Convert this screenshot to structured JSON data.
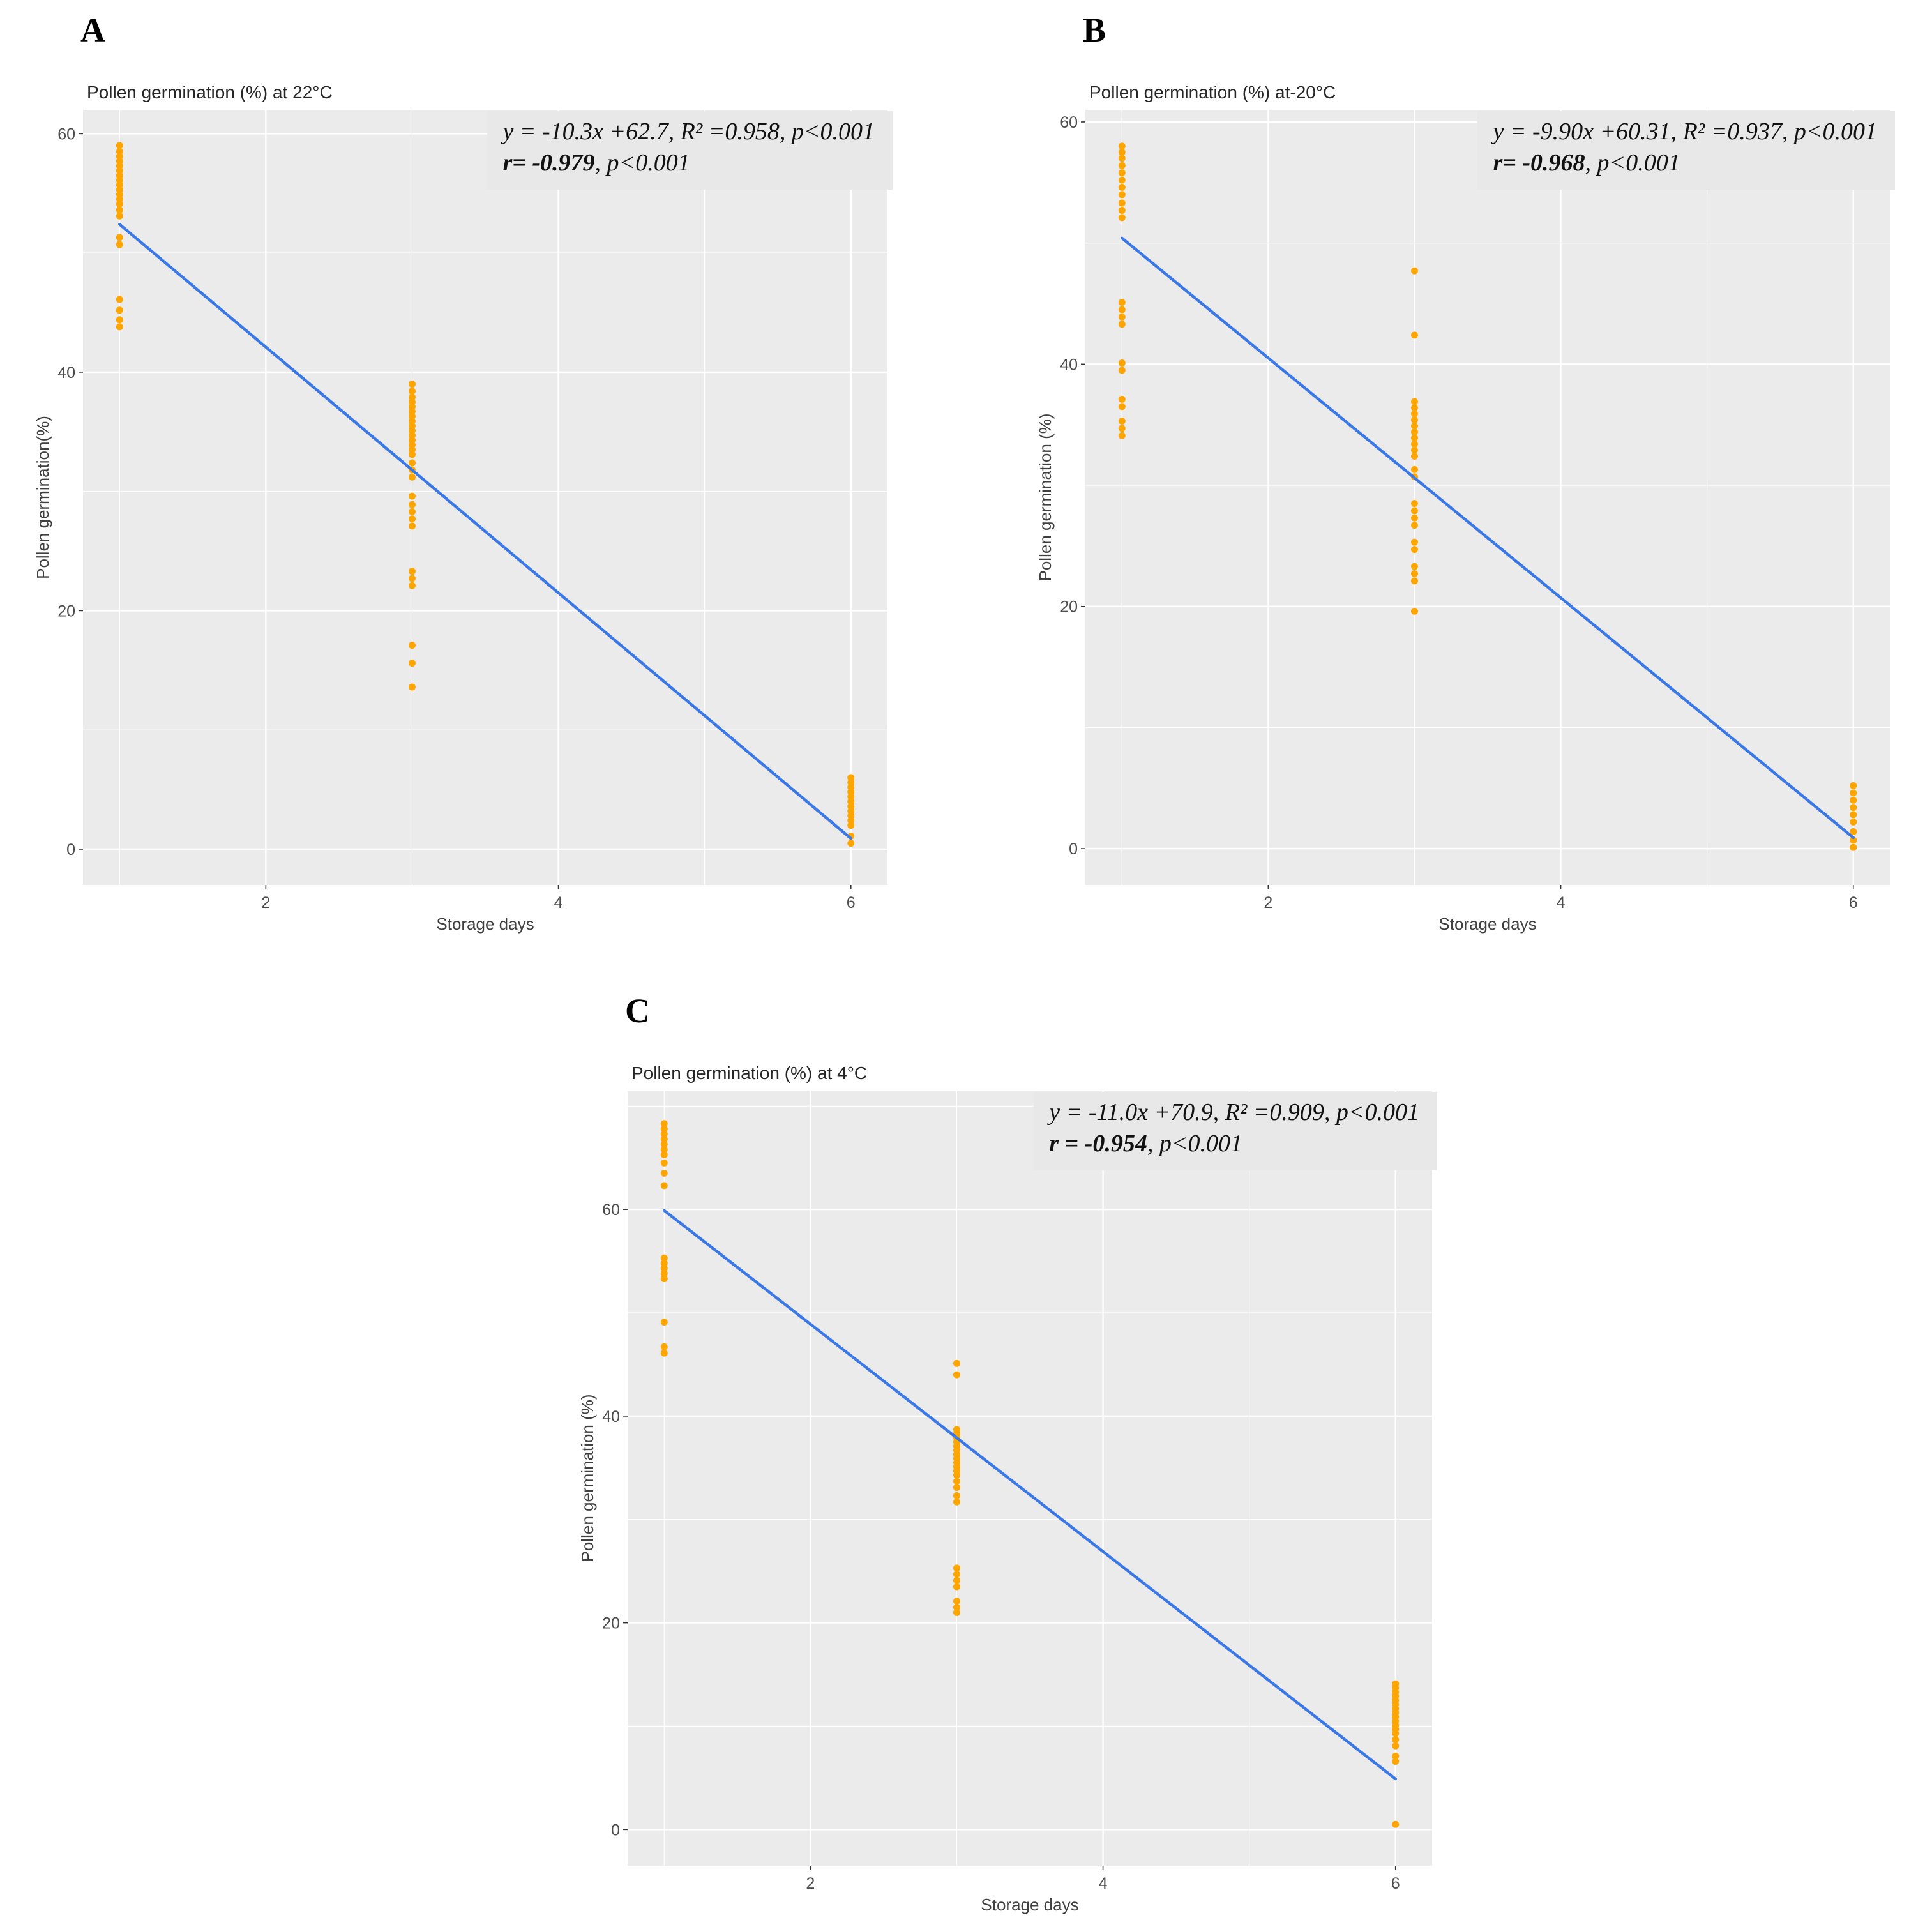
{
  "colors": {
    "point": "#FFA500",
    "line": "#3B78E7",
    "panel_bg": "#EBEBEB",
    "grid": "#FFFFFF",
    "annotation_bg": "#E8E8E8",
    "tick_text": "#4D4D4D",
    "axis_text": "#404040",
    "title_text": "#262626"
  },
  "chart_data": [
    {
      "panel_label": "A",
      "type": "scatter",
      "title": "Pollen germination (%) at 22°C",
      "xlabel": "Storage days",
      "ylabel": "Pollen germination(%)",
      "xlim": [
        0.75,
        6.25
      ],
      "ylim": [
        -3,
        62
      ],
      "xticks": [
        2,
        4,
        6
      ],
      "yticks": [
        0,
        20,
        40,
        60
      ],
      "xminor": [
        1,
        3,
        5
      ],
      "yminor": [
        10,
        30,
        50
      ],
      "grid": true,
      "legend": "none",
      "annotation": {
        "line1": "y = -10.3x +62.7,  R² =0.958, p<0.001",
        "line2_bold": "r= -0.979",
        "line2_rest": ", p<0.001"
      },
      "regression": {
        "slope": -10.3,
        "intercept": 62.7,
        "x_start": 1,
        "x_end": 6
      },
      "series": [
        {
          "name": "observations",
          "groups": [
            {
              "x": 1,
              "y": [
                59,
                58.5,
                58.1,
                57.7,
                57.3,
                56.9,
                56.5,
                56.1,
                55.7,
                55.3,
                54.9,
                54.5,
                54.1,
                53.6,
                53.1,
                51.3,
                50.7,
                46.1,
                45.2,
                44.4,
                43.8
              ]
            },
            {
              "x": 3,
              "y": [
                39,
                38.4,
                37.9,
                37.5,
                37.1,
                36.7,
                36.3,
                35.9,
                35.5,
                35.1,
                34.7,
                34.3,
                33.9,
                33.5,
                33.1,
                32.4,
                31.8,
                31.2,
                29.6,
                28.9,
                28.3,
                27.7,
                27.1,
                23.3,
                22.7,
                22.1,
                17.1,
                15.6,
                13.6
              ]
            },
            {
              "x": 6,
              "y": [
                6,
                5.6,
                5.2,
                4.8,
                4.4,
                4.0,
                3.6,
                3.2,
                2.8,
                2.4,
                2.0,
                1.1,
                0.5
              ]
            }
          ]
        }
      ]
    },
    {
      "panel_label": "B",
      "type": "scatter",
      "title": "Pollen germination (%) at-20°C",
      "xlabel": "Storage days",
      "ylabel": "Pollen germination (%)",
      "xlim": [
        0.75,
        6.25
      ],
      "ylim": [
        -3,
        61
      ],
      "xticks": [
        2,
        4,
        6
      ],
      "yticks": [
        0,
        20,
        40,
        60
      ],
      "xminor": [
        1,
        3,
        5
      ],
      "yminor": [
        10,
        30,
        50
      ],
      "grid": true,
      "legend": "none",
      "annotation": {
        "line1": "y = -9.90x +60.31,  R² =0.937, p<0.001",
        "line2_bold": "r= -0.968",
        "line2_rest": ", p<0.001"
      },
      "regression": {
        "slope": -9.9,
        "intercept": 60.31,
        "x_start": 1,
        "x_end": 6
      },
      "series": [
        {
          "name": "observations",
          "groups": [
            {
              "x": 1,
              "y": [
                58,
                57.5,
                57,
                56.4,
                55.8,
                55.2,
                54.6,
                54,
                53.3,
                52.7,
                52.1,
                45.1,
                44.5,
                43.9,
                43.3,
                40.1,
                39.5,
                37.1,
                36.5,
                35.3,
                34.7,
                34.1
              ]
            },
            {
              "x": 3,
              "y": [
                47.7,
                42.4,
                36.9,
                36.4,
                35.9,
                35.4,
                34.9,
                34.4,
                33.9,
                33.4,
                32.9,
                32.4,
                31.3,
                30.7,
                28.5,
                27.9,
                27.3,
                26.7,
                25.3,
                24.7,
                23.3,
                22.7,
                22.1,
                19.6
              ]
            },
            {
              "x": 6,
              "y": [
                5.2,
                4.6,
                4.0,
                3.4,
                2.8,
                2.2,
                1.4,
                0.7,
                0.1
              ]
            }
          ]
        }
      ]
    },
    {
      "panel_label": "C",
      "type": "scatter",
      "title": "Pollen germination (%) at 4°C",
      "xlabel": "Storage days",
      "ylabel": "Pollen germination (%)",
      "xlim": [
        0.75,
        6.25
      ],
      "ylim": [
        -3.5,
        71.5
      ],
      "xticks": [
        2,
        4,
        6
      ],
      "yticks": [
        0,
        20,
        40,
        60
      ],
      "xminor": [
        1,
        3,
        5
      ],
      "yminor": [
        10,
        30,
        50,
        70
      ],
      "grid": true,
      "legend": "none",
      "annotation": {
        "line1": "y = -11.0x +70.9,  R² =0.909, p<0.001",
        "line2_bold": "r = -0.954",
        "line2_rest": ", p<0.001"
      },
      "regression": {
        "slope": -11.0,
        "intercept": 70.9,
        "x_start": 1,
        "x_end": 6
      },
      "series": [
        {
          "name": "observations",
          "groups": [
            {
              "x": 1,
              "y": [
                68.3,
                67.8,
                67.3,
                66.8,
                66.3,
                65.8,
                65.3,
                64.5,
                63.5,
                62.3,
                55.3,
                54.8,
                54.3,
                53.8,
                53.3,
                49.1,
                46.7,
                46.1
              ]
            },
            {
              "x": 3,
              "y": [
                45.1,
                44.0,
                38.7,
                38.3,
                37.9,
                37.5,
                37.1,
                36.7,
                36.3,
                35.9,
                35.5,
                35.1,
                34.7,
                34.3,
                33.7,
                33.1,
                32.3,
                31.7,
                25.3,
                24.7,
                24.1,
                23.5,
                22.1,
                21.5,
                21.0
              ]
            },
            {
              "x": 6,
              "y": [
                14.1,
                13.7,
                13.3,
                12.9,
                12.5,
                12.1,
                11.7,
                11.3,
                10.9,
                10.5,
                10.1,
                9.7,
                9.3,
                8.7,
                8.1,
                7.1,
                6.6,
                0.5
              ]
            }
          ]
        }
      ]
    }
  ]
}
